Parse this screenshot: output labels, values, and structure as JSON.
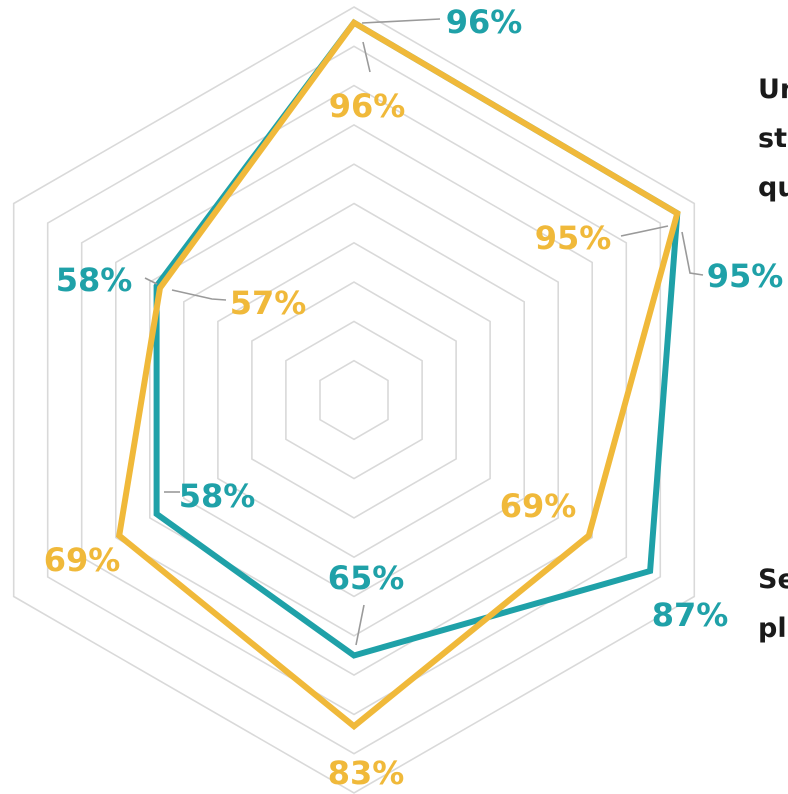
{
  "chart_data": {
    "type": "radar",
    "axes_visible": [
      "Un st qu",
      "",
      "Se pl",
      "",
      "",
      ""
    ],
    "ylim": [
      0,
      100
    ],
    "grid_levels": 10,
    "series": [
      {
        "color": "#1fa1a8",
        "values": [
          96,
          95,
          87,
          65,
          58,
          58
        ]
      },
      {
        "color": "#f0b93a",
        "values": [
          96,
          95,
          69,
          83,
          69,
          57
        ]
      }
    ],
    "value_labels": {
      "series_0": [
        "96%",
        "95%",
        "87%",
        "65%",
        "58%",
        "58%"
      ],
      "series_1": [
        "96%",
        "95%",
        "69%",
        "83%",
        "69%",
        "57%"
      ]
    },
    "category_labels": [
      {
        "lines": [
          "Un",
          "st",
          "qu"
        ]
      },
      {
        "lines": [
          "Se",
          "pl"
        ]
      }
    ],
    "colors": {
      "grid": "#d9d9d9",
      "leader": "#9a9a9a"
    }
  }
}
